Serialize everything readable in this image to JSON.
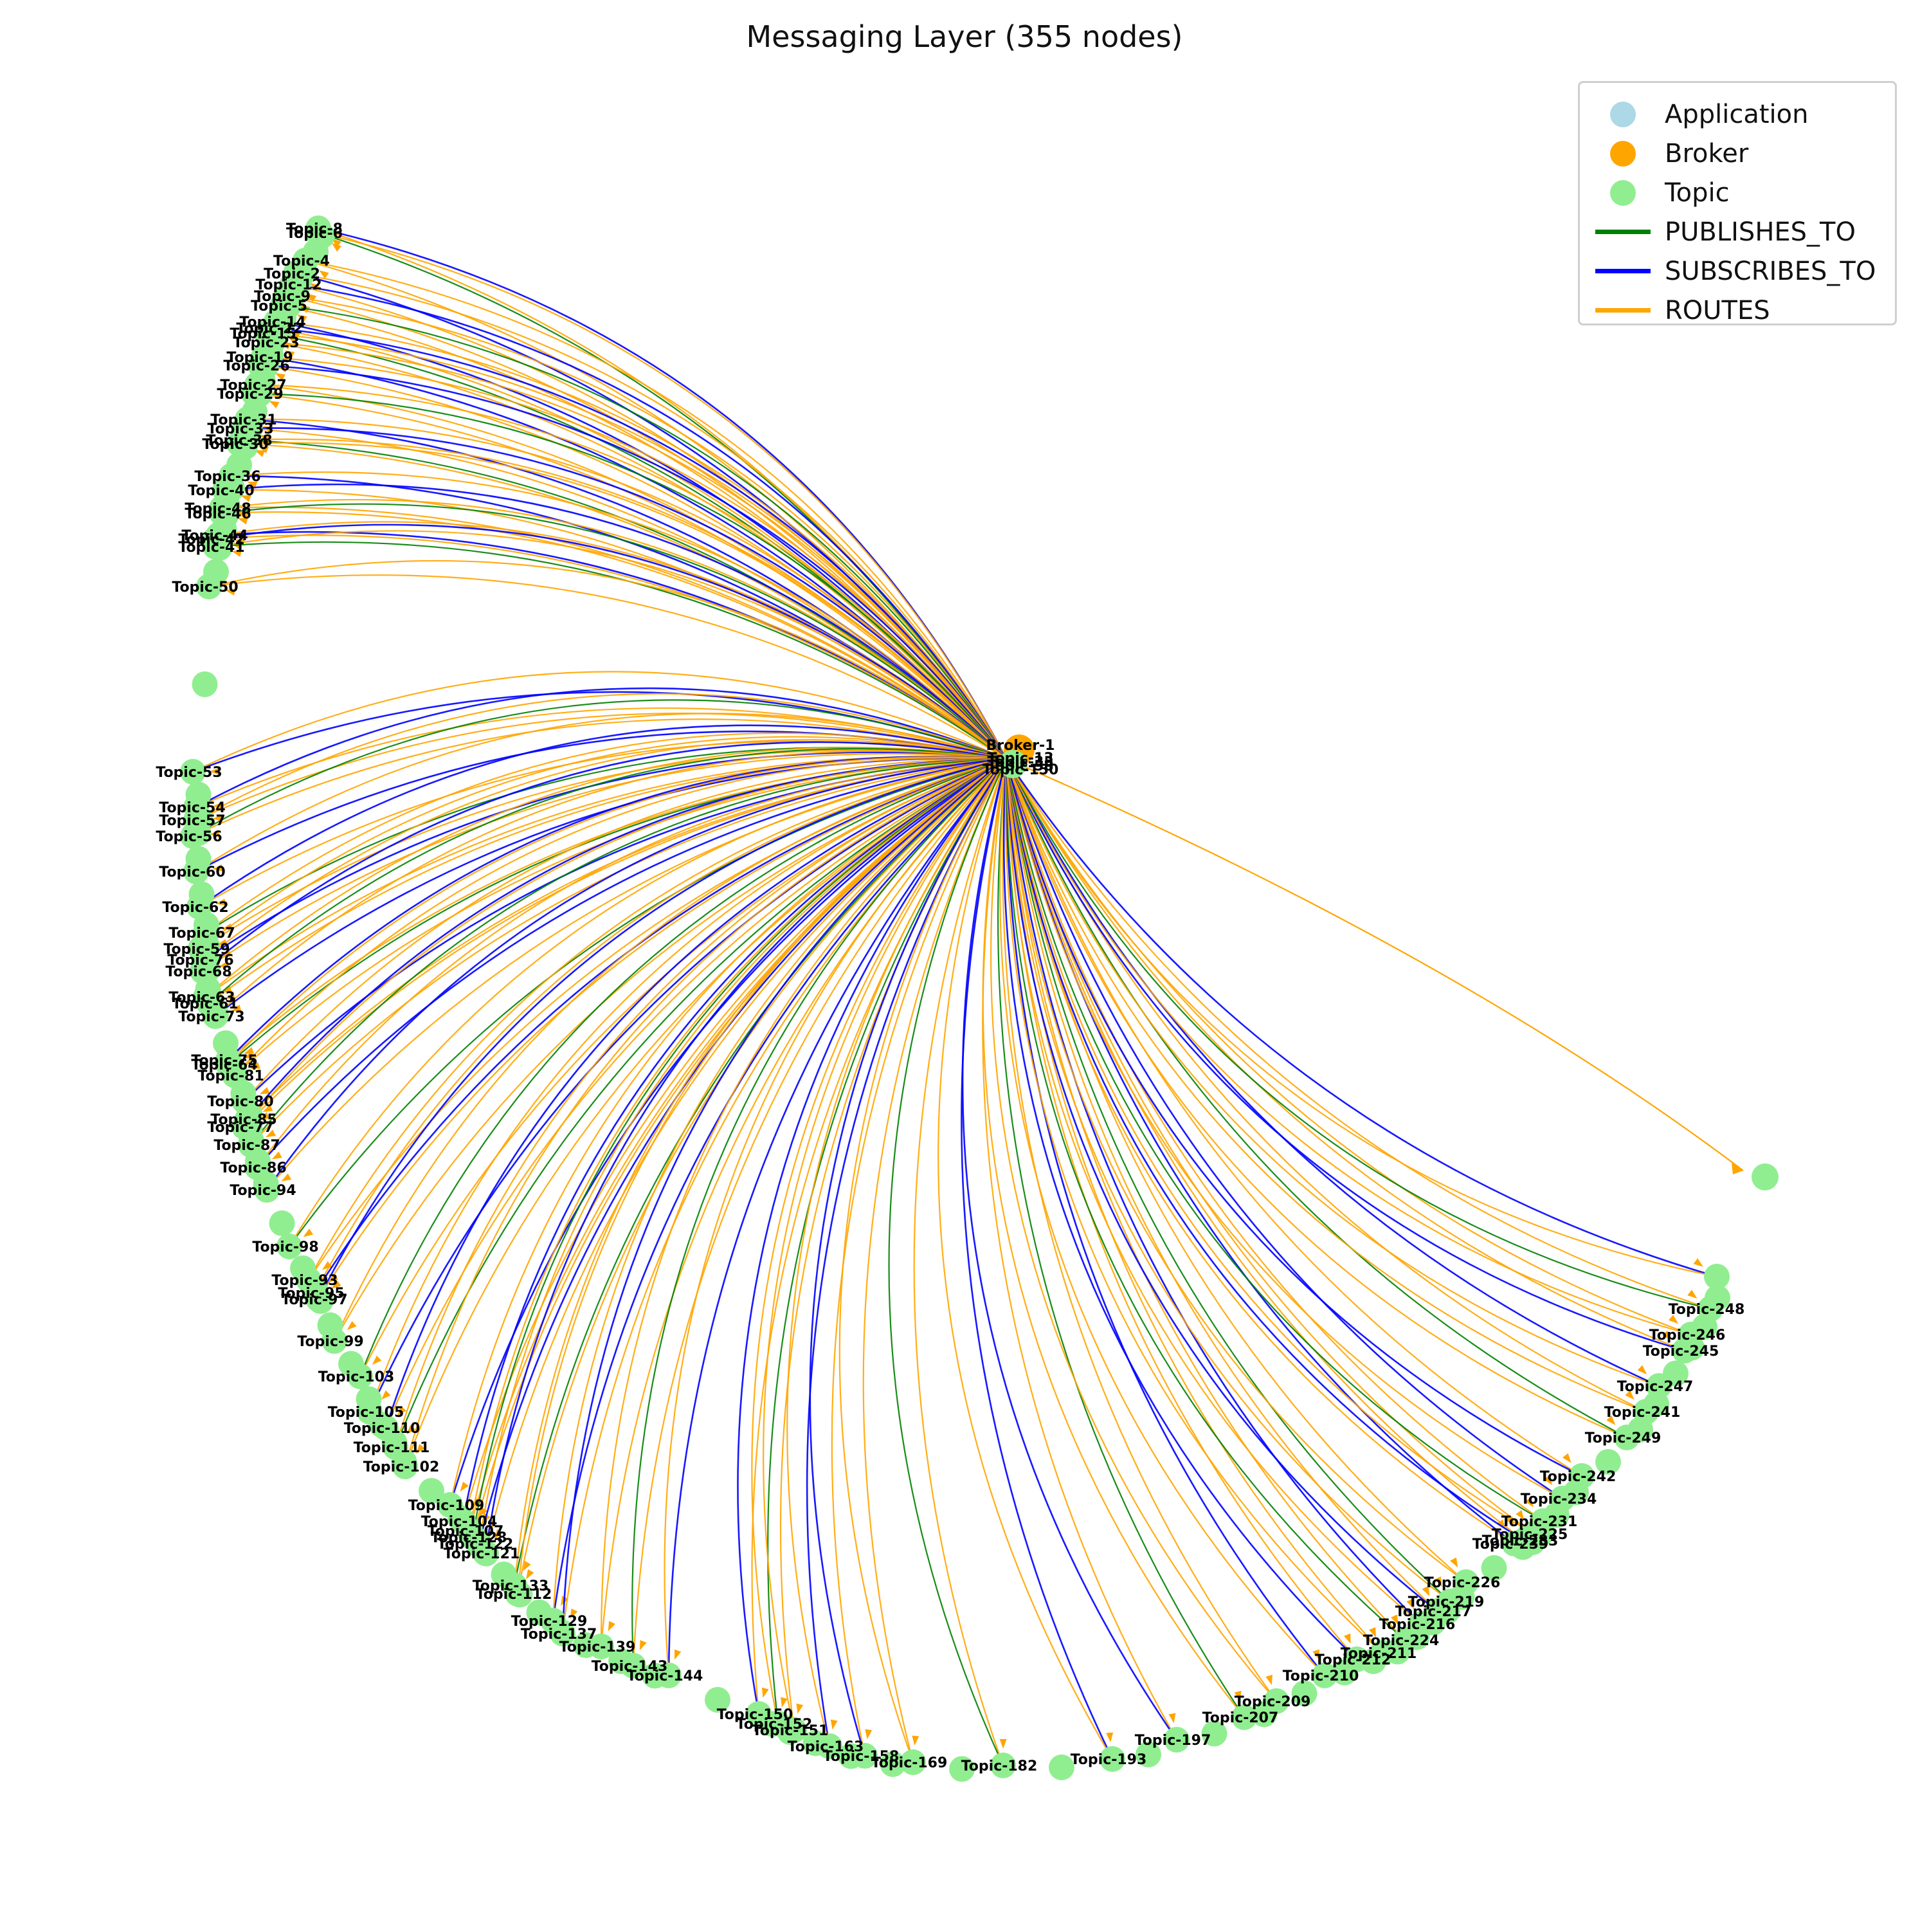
{
  "title": "Messaging Layer (355 nodes)",
  "legend": {
    "items": [
      {
        "label": "Application",
        "kind": "node",
        "color": "#add8e6"
      },
      {
        "label": "Broker",
        "kind": "node",
        "color": "#ffa500"
      },
      {
        "label": "Topic",
        "kind": "node",
        "color": "#90ee90"
      },
      {
        "label": "PUBLISHES_TO",
        "kind": "edge",
        "color": "#008000"
      },
      {
        "label": "SUBSCRIBES_TO",
        "kind": "edge",
        "color": "#0000ff"
      },
      {
        "label": "ROUTES",
        "kind": "edge",
        "color": "#ffa500"
      }
    ]
  },
  "hub": {
    "label": "Broker-1",
    "node_type": "Broker"
  },
  "hub_cluster_labels": [
    "Topic-13",
    "Topic-35",
    "Topic-58",
    "Topic-150"
  ],
  "topic_labels": [
    "Topic-8",
    "Topic-6",
    "Topic-4",
    "Topic-2",
    "Topic-12",
    "Topic-9",
    "Topic-5",
    "Topic-14",
    "Topic-22",
    "Topic-15",
    "Topic-23",
    "Topic-19",
    "Topic-26",
    "Topic-27",
    "Topic-29",
    "Topic-31",
    "Topic-33",
    "Topic-38",
    "Topic-30",
    "Topic-36",
    "Topic-40",
    "Topic-48",
    "Topic-46",
    "Topic-44",
    "Topic-42",
    "Topic-41",
    "Topic-50",
    "Topic-53",
    "Topic-54",
    "Topic-57",
    "Topic-56",
    "Topic-60",
    "Topic-62",
    "Topic-67",
    "Topic-59",
    "Topic-76",
    "Topic-68",
    "Topic-63",
    "Topic-61",
    "Topic-73",
    "Topic-75",
    "Topic-64",
    "Topic-81",
    "Topic-80",
    "Topic-85",
    "Topic-77",
    "Topic-87",
    "Topic-86",
    "Topic-94",
    "Topic-98",
    "Topic-93",
    "Topic-95",
    "Topic-97",
    "Topic-99",
    "Topic-103",
    "Topic-105",
    "Topic-110",
    "Topic-111",
    "Topic-102",
    "Topic-109",
    "Topic-104",
    "Topic-107",
    "Topic-128",
    "Topic-122",
    "Topic-121",
    "Topic-133",
    "Topic-112",
    "Topic-129",
    "Topic-137",
    "Topic-139",
    "Topic-143",
    "Topic-144",
    "Topic-150",
    "Topic-152",
    "Topic-151",
    "Topic-163",
    "Topic-158",
    "Topic-169",
    "Topic-182",
    "Topic-193",
    "Topic-197",
    "Topic-207",
    "Topic-209",
    "Topic-210",
    "Topic-212",
    "Topic-211",
    "Topic-224",
    "Topic-216",
    "Topic-217",
    "Topic-219",
    "Topic-226",
    "Topic-239",
    "Topic-233",
    "Topic-225",
    "Topic-231",
    "Topic-234",
    "Topic-242",
    "Topic-249",
    "Topic-241",
    "Topic-247",
    "Topic-245",
    "Topic-246",
    "Topic-248"
  ],
  "orphan_node": {
    "node_type": "Topic"
  }
}
